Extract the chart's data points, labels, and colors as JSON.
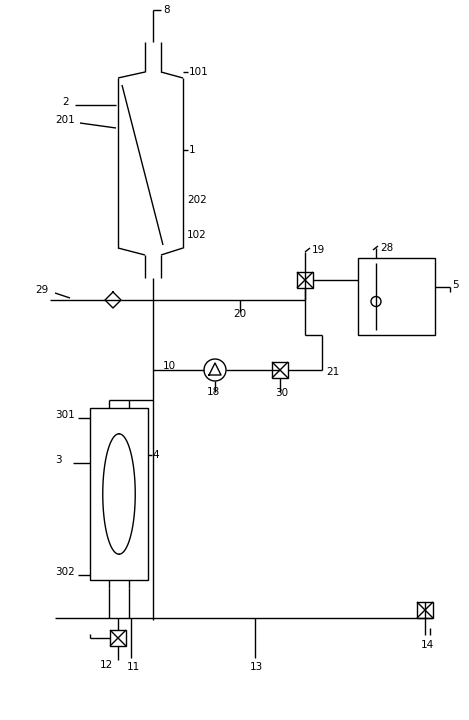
{
  "bg_color": "#ffffff",
  "line_color": "#000000",
  "lw": 1.0,
  "fig_width": 4.69,
  "fig_height": 7.2,
  "dpi": 100
}
